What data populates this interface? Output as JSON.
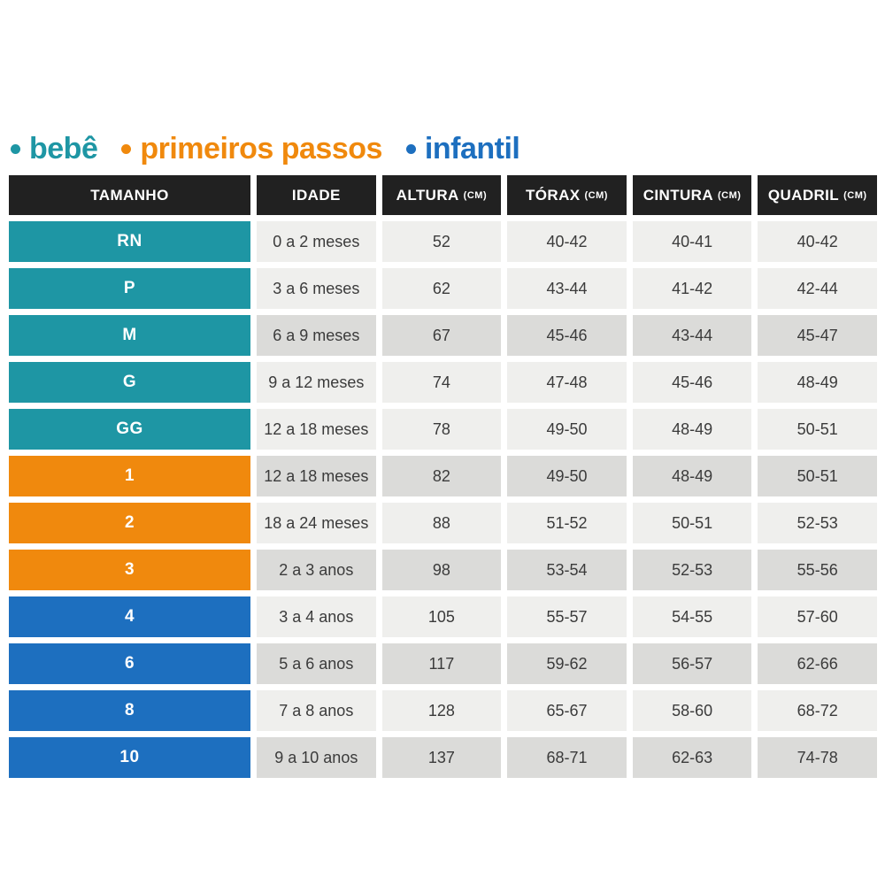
{
  "legend": {
    "items": [
      {
        "label": "bebê",
        "color": "#1E96A4"
      },
      {
        "label": "primeiros passos",
        "color": "#F0890D"
      },
      {
        "label": "infantil",
        "color": "#1D6FBF"
      }
    ]
  },
  "table": {
    "header_bg": "#212121",
    "shades": {
      "light": "#EFEFED",
      "dark": "#DBDBD9"
    },
    "headers": [
      {
        "label": "TAMANHO",
        "unit": ""
      },
      {
        "label": "IDADE",
        "unit": ""
      },
      {
        "label": "ALTURA",
        "unit": "(CM)"
      },
      {
        "label": "TÓRAX",
        "unit": "(CM)"
      },
      {
        "label": "CINTURA",
        "unit": "(CM)"
      },
      {
        "label": "QUADRIL",
        "unit": "(CM)"
      }
    ],
    "rows": [
      {
        "size": "RN",
        "group": "bebê",
        "color": "#1E96A4",
        "shade": "light",
        "idade": "0 a 2 meses",
        "altura": "52",
        "torax": "40-42",
        "cintura": "40-41",
        "quadril": "40-42"
      },
      {
        "size": "P",
        "group": "bebê",
        "color": "#1E96A4",
        "shade": "light",
        "idade": "3 a 6 meses",
        "altura": "62",
        "torax": "43-44",
        "cintura": "41-42",
        "quadril": "42-44"
      },
      {
        "size": "M",
        "group": "bebê",
        "color": "#1E96A4",
        "shade": "dark",
        "idade": "6 a 9 meses",
        "altura": "67",
        "torax": "45-46",
        "cintura": "43-44",
        "quadril": "45-47"
      },
      {
        "size": "G",
        "group": "bebê",
        "color": "#1E96A4",
        "shade": "light",
        "idade": "9 a 12 meses",
        "altura": "74",
        "torax": "47-48",
        "cintura": "45-46",
        "quadril": "48-49"
      },
      {
        "size": "GG",
        "group": "bebê",
        "color": "#1E96A4",
        "shade": "light",
        "idade": "12 a 18 meses",
        "altura": "78",
        "torax": "49-50",
        "cintura": "48-49",
        "quadril": "50-51"
      },
      {
        "size": "1",
        "group": "primeiros passos",
        "color": "#F0890D",
        "shade": "dark",
        "idade": "12 a 18 meses",
        "altura": "82",
        "torax": "49-50",
        "cintura": "48-49",
        "quadril": "50-51"
      },
      {
        "size": "2",
        "group": "primeiros passos",
        "color": "#F0890D",
        "shade": "light",
        "idade": "18 a 24 meses",
        "altura": "88",
        "torax": "51-52",
        "cintura": "50-51",
        "quadril": "52-53"
      },
      {
        "size": "3",
        "group": "primeiros passos",
        "color": "#F0890D",
        "shade": "dark",
        "idade": "2 a 3 anos",
        "altura": "98",
        "torax": "53-54",
        "cintura": "52-53",
        "quadril": "55-56"
      },
      {
        "size": "4",
        "group": "infantil",
        "color": "#1D6FBF",
        "shade": "light",
        "idade": "3 a 4 anos",
        "altura": "105",
        "torax": "55-57",
        "cintura": "54-55",
        "quadril": "57-60"
      },
      {
        "size": "6",
        "group": "infantil",
        "color": "#1D6FBF",
        "shade": "dark",
        "idade": "5 a 6 anos",
        "altura": "117",
        "torax": "59-62",
        "cintura": "56-57",
        "quadril": "62-66"
      },
      {
        "size": "8",
        "group": "infantil",
        "color": "#1D6FBF",
        "shade": "light",
        "idade": "7 a 8 anos",
        "altura": "128",
        "torax": "65-67",
        "cintura": "58-60",
        "quadril": "68-72"
      },
      {
        "size": "10",
        "group": "infantil",
        "color": "#1D6FBF",
        "shade": "dark",
        "idade": "9 a 10 anos",
        "altura": "137",
        "torax": "68-71",
        "cintura": "62-63",
        "quadril": "74-78"
      }
    ]
  },
  "chart_data": {
    "type": "table",
    "title": "",
    "legend_entries": [
      "bebê",
      "primeiros passos",
      "infantil"
    ],
    "columns": [
      "TAMANHO",
      "IDADE",
      "ALTURA (CM)",
      "TÓRAX (CM)",
      "CINTURA (CM)",
      "QUADRIL (CM)"
    ],
    "rows": [
      [
        "RN",
        "0 a 2 meses",
        "52",
        "40-42",
        "40-41",
        "40-42"
      ],
      [
        "P",
        "3 a 6 meses",
        "62",
        "43-44",
        "41-42",
        "42-44"
      ],
      [
        "M",
        "6 a 9 meses",
        "67",
        "45-46",
        "43-44",
        "45-47"
      ],
      [
        "G",
        "9 a 12 meses",
        "74",
        "47-48",
        "45-46",
        "48-49"
      ],
      [
        "GG",
        "12 a 18 meses",
        "78",
        "49-50",
        "48-49",
        "50-51"
      ],
      [
        "1",
        "12 a 18 meses",
        "82",
        "49-50",
        "48-49",
        "50-51"
      ],
      [
        "2",
        "18 a 24 meses",
        "88",
        "51-52",
        "50-51",
        "52-53"
      ],
      [
        "3",
        "2 a 3 anos",
        "98",
        "53-54",
        "52-53",
        "55-56"
      ],
      [
        "4",
        "3 a 4 anos",
        "105",
        "55-57",
        "54-55",
        "57-60"
      ],
      [
        "6",
        "5 a 6 anos",
        "117",
        "59-62",
        "56-57",
        "62-66"
      ],
      [
        "8",
        "7 a 8 anos",
        "128",
        "65-67",
        "58-60",
        "68-72"
      ],
      [
        "10",
        "9 a 10 anos",
        "137",
        "68-71",
        "62-63",
        "74-78"
      ]
    ],
    "row_groups": {
      "bebê": [
        "RN",
        "P",
        "M",
        "G",
        "GG"
      ],
      "primeiros passos": [
        "1",
        "2",
        "3"
      ],
      "infantil": [
        "4",
        "6",
        "8",
        "10"
      ]
    }
  }
}
